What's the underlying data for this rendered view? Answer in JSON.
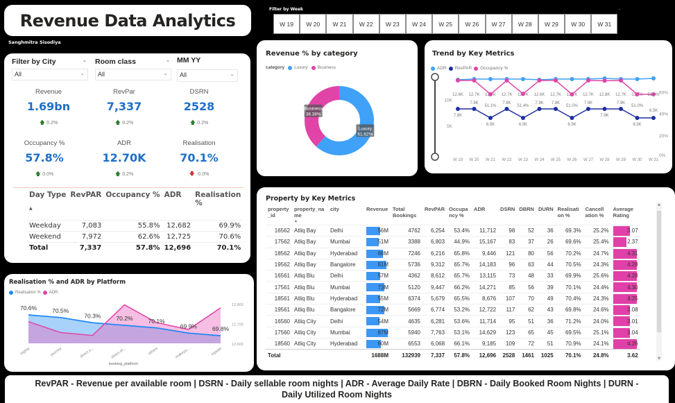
{
  "header": {
    "title": "Revenue Data Analytics",
    "author": "Sanghmitra Sisodiya"
  },
  "week_filter": {
    "label": "Filter by Week",
    "weeks": [
      "W 19",
      "W 20",
      "W 21",
      "W 22",
      "W 23",
      "W 24",
      "W 25",
      "W 26",
      "W 27",
      "W 28",
      "W 29",
      "W 30",
      "W 31"
    ]
  },
  "filters": {
    "city": {
      "label": "Filter by City",
      "value": "All"
    },
    "room_class": {
      "label": "Room class",
      "value": "All"
    },
    "mmyy": {
      "label": "MM YY",
      "value": "All"
    }
  },
  "kpis": [
    {
      "label": "Revenue",
      "value": "1.69bn",
      "delta": "0.2%",
      "direction": "up"
    },
    {
      "label": "RevPar",
      "value": "7,337",
      "delta": "0.2%",
      "direction": "up"
    },
    {
      "label": "DSRN",
      "value": "2528",
      "delta": "0.2%",
      "direction": "up"
    },
    {
      "label": "Occupancy %",
      "value": "57.8%",
      "delta": "0.0%",
      "direction": "up"
    },
    {
      "label": "ADR",
      "value": "12.70K",
      "delta": "0.2%",
      "direction": "up"
    },
    {
      "label": "Realisation",
      "value": "70.1%",
      "delta": "-0.0%",
      "direction": "down"
    }
  ],
  "day_type_table": {
    "headers": [
      "Day Type",
      "RevPAR",
      "Occupancy %",
      "ADR",
      "Realisation %"
    ],
    "rows": [
      [
        "Weekday",
        "7,083",
        "55.8%",
        "12,682",
        "69.9%"
      ],
      [
        "Weekend",
        "7,972",
        "62.6%",
        "12,725",
        "70.6%"
      ]
    ],
    "total": [
      "Total",
      "7,337",
      "57.8%",
      "12,696",
      "70.1%"
    ]
  },
  "colors": {
    "luxury": "#3fa1f7",
    "business": "#e044a7",
    "adr": "#3fa1f7",
    "revpar": "#1f2ea0",
    "occupancy": "#e044a7",
    "kpi_value": "#1f6fc8",
    "realisation_area": "#9fcdfa",
    "adr_area": "#f5bfe0"
  },
  "chart_data": [
    {
      "id": "revenue_by_category",
      "type": "pie",
      "title": "Revenue % by category",
      "legend_title": "category",
      "legend_position": "top-left",
      "slices": [
        {
          "name": "Luxury",
          "value": 61.62,
          "label": "61.62%"
        },
        {
          "name": "Business",
          "value": 38.38,
          "label": "38.38%"
        }
      ]
    },
    {
      "id": "trend_by_key_metrics",
      "type": "line",
      "title": "Trend by Key Metrics",
      "legend_position": "top-left",
      "x": [
        "W 19",
        "W 20",
        "W 21",
        "W 22",
        "W 23",
        "W 24",
        "W 25",
        "W 26",
        "W 27",
        "W 28",
        "W 29",
        "W 30",
        "W 31"
      ],
      "y_left": {
        "ticks": [
          "5K",
          "10K"
        ],
        "range": [
          0,
          14000
        ]
      },
      "y_right": {
        "ticks": [
          "0%",
          "20%",
          "40%",
          "60%"
        ],
        "range": [
          0,
          70
        ]
      },
      "series": [
        {
          "name": "ADR",
          "axis": "left",
          "values": [
            12600,
            12700,
            12700,
            12700,
            12700,
            12600,
            12700,
            12700,
            12700,
            12800,
            12700,
            12700,
            12800
          ],
          "labels": [
            "12.6K",
            "12.7K",
            "12.7K",
            "12.7K",
            "12.7K",
            "12.6K",
            "12.7K",
            "12.7K",
            "12.7K",
            "12.8K",
            "12.7K",
            "12.7K",
            "12.8K"
          ]
        },
        {
          "name": "RevPAR",
          "axis": "left",
          "values": [
            7800,
            7900,
            6500,
            7800,
            6500,
            7900,
            7800,
            6500,
            7900,
            7900,
            7900,
            6500,
            6500
          ],
          "labels": [
            "7.8K",
            "7.9K",
            "6.5K",
            "7.8K",
            "6.5K",
            "7.9K",
            "7.8K",
            "6.5K",
            "7.9K",
            "7.9K",
            "7.9K",
            "6.5K",
            "6.5K"
          ]
        },
        {
          "name": "Occupancy %",
          "axis": "right",
          "values": [
            62.0,
            62.0,
            51.1,
            62.0,
            51.4,
            62.0,
            62.0,
            51.0,
            62.0,
            61.8,
            62.0,
            51.0,
            51.0
          ],
          "labels": [
            "62.0%",
            "62.0%",
            "51.1%",
            "62.0%",
            "51.4%",
            "62.0%",
            "62.0%",
            "51.0%",
            "62.0%",
            "61.8%",
            "62.0%",
            "51.0%",
            "51.0%"
          ]
        }
      ]
    },
    {
      "id": "realisation_adr_by_platform",
      "type": "area",
      "title": "Realisation % and ADR by Platform",
      "xlabel": "booking_platform",
      "legend_position": "top-left",
      "x": [
        "logtrip",
        "journey",
        "direct o...",
        "direct of...",
        "others",
        "makeyo...",
        "tripster"
      ],
      "y_right": {
        "ticks": [
          "12,600",
          "12,700",
          "12,800"
        ],
        "range": [
          12600,
          12800
        ]
      },
      "series": [
        {
          "name": "Realisation %",
          "values": [
            70.6,
            70.5,
            70.3,
            70.2,
            70.1,
            69.9,
            69.8
          ],
          "labels": [
            "70.6%",
            "70.5%",
            "70.3%",
            "70.2%",
            "70.1%",
            "69.9%",
            "69.8%"
          ]
        },
        {
          "name": "ADR",
          "values": [
            12710,
            12655,
            12640,
            12795,
            12705,
            12670,
            12780
          ]
        }
      ]
    }
  ],
  "property_table": {
    "title": "Property by Key Metrics",
    "headers": [
      "property_id",
      "property_name",
      "city",
      "Revenue",
      "Total Bookings",
      "RevPAR",
      "Occupancy %",
      "ADR",
      "DSRN",
      "DBRN",
      "DURN",
      "Realisation %",
      "Cancellation %",
      "Average Rating"
    ],
    "rows": [
      [
        "16562",
        "Atliq Bay",
        "Delhi",
        "56M",
        "4762",
        "6,254",
        "53.4%",
        "11,712",
        "98",
        "52",
        "36",
        "69.3%",
        "25.2%",
        "3.07"
      ],
      [
        "17562",
        "Atliq Bay",
        "Mumbai",
        "51M",
        "3388",
        "6,803",
        "44.9%",
        "15,167",
        "83",
        "37",
        "26",
        "69.6%",
        "25.4%",
        "2.37"
      ],
      [
        "18562",
        "Atliq Bay",
        "Hyderabad",
        "68M",
        "7246",
        "6,216",
        "65.8%",
        "9,446",
        "121",
        "80",
        "56",
        "70.2%",
        "24.7%",
        "4.31"
      ],
      [
        "19562",
        "Atliq Bay",
        "Bangalore",
        "81M",
        "5736",
        "9,312",
        "65.7%",
        "14,183",
        "96",
        "63",
        "44",
        "70.5%",
        "24.3%",
        "4.28"
      ],
      [
        "16561",
        "Atliq Blu",
        "Delhi",
        "57M",
        "4362",
        "8,612",
        "65.7%",
        "13,115",
        "73",
        "48",
        "33",
        "69.9%",
        "25.6%",
        "4.28"
      ],
      [
        "17561",
        "Atliq Blu",
        "Mumbai",
        "73M",
        "5120",
        "9,447",
        "66.2%",
        "14,271",
        "85",
        "56",
        "39",
        "70.1%",
        "24.4%",
        "4.30"
      ],
      [
        "18561",
        "Atliq Blu",
        "Hyderabad",
        "55M",
        "6374",
        "5,679",
        "65.5%",
        "8,676",
        "107",
        "70",
        "49",
        "70.4%",
        "24.3%",
        "4.25"
      ],
      [
        "19561",
        "Atliq Blu",
        "Bangalore",
        "72M",
        "5669",
        "6,774",
        "53.2%",
        "12,722",
        "117",
        "62",
        "43",
        "69.8%",
        "24.6%",
        "3.08"
      ],
      [
        "16560",
        "Atliq City",
        "Delhi",
        "54M",
        "4635",
        "6,281",
        "53.6%",
        "11,714",
        "95",
        "51",
        "36",
        "71.2%",
        "24.0%",
        "3.01"
      ],
      [
        "17560",
        "Atliq City",
        "Mumbai",
        "87M",
        "5940",
        "7,763",
        "53.1%",
        "14,629",
        "123",
        "65",
        "45",
        "69.5%",
        "25.1%",
        "3.04"
      ],
      [
        "18560",
        "Atliq City",
        "Hyderabad",
        "60M",
        "6553",
        "6,068",
        "66.1%",
        "9,185",
        "109",
        "72",
        "51",
        "70.9%",
        "24.1%",
        "4.26"
      ]
    ],
    "total": [
      "Total",
      "",
      "",
      "1688M",
      "132939",
      "7,337",
      "57.8%",
      "12,696",
      "2528",
      "1461",
      "1025",
      "70.1%",
      "24.8%",
      "3.62"
    ]
  },
  "footer": {
    "text": "RevPAR - Revenue per available room | DSRN - Daily sellable room nights | ADR - Average Daily Rate | DBRN - Daily Booked Room Nights | DURN - Daily Utilized Room Nights"
  }
}
